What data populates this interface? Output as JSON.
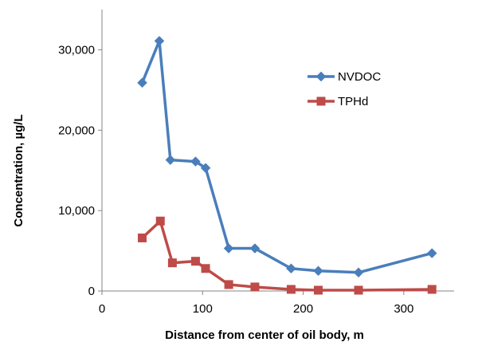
{
  "colors": {
    "nvdoc": "#4a7ebb",
    "tphd": "#be4b48",
    "axis": "#868686"
  },
  "chart_data": {
    "type": "line",
    "title": "",
    "xlabel": "Distance from center of oil body, m",
    "ylabel": "Concentration, µg/L",
    "xlim": [
      0,
      350
    ],
    "ylim": [
      0,
      35000
    ],
    "x_ticks": [
      0,
      100,
      200,
      300
    ],
    "y_ticks": [
      0,
      10000,
      20000,
      30000
    ],
    "x_tick_labels": [
      "0",
      "100",
      "200",
      "300"
    ],
    "y_tick_labels": [
      "0",
      "10,000",
      "20,000",
      "30,000"
    ],
    "grid": false,
    "legend_position": "right",
    "series": [
      {
        "name": "NVDOC",
        "color": "#4a7ebb",
        "marker": "diamond",
        "points": [
          [
            40,
            25900
          ],
          [
            57,
            31100
          ],
          [
            68,
            16300
          ],
          [
            93,
            16100
          ],
          [
            103,
            15300
          ],
          [
            126,
            5300
          ],
          [
            152,
            5300
          ],
          [
            188,
            2800
          ],
          [
            215,
            2500
          ],
          [
            255,
            2300
          ],
          [
            328,
            4700
          ]
        ]
      },
      {
        "name": "TPHd",
        "color": "#be4b48",
        "marker": "square",
        "points": [
          [
            40,
            6600
          ],
          [
            58,
            8700
          ],
          [
            70,
            3500
          ],
          [
            93,
            3700
          ],
          [
            103,
            2800
          ],
          [
            126,
            800
          ],
          [
            152,
            500
          ],
          [
            188,
            200
          ],
          [
            215,
            100
          ],
          [
            255,
            100
          ],
          [
            328,
            200
          ]
        ]
      }
    ]
  }
}
